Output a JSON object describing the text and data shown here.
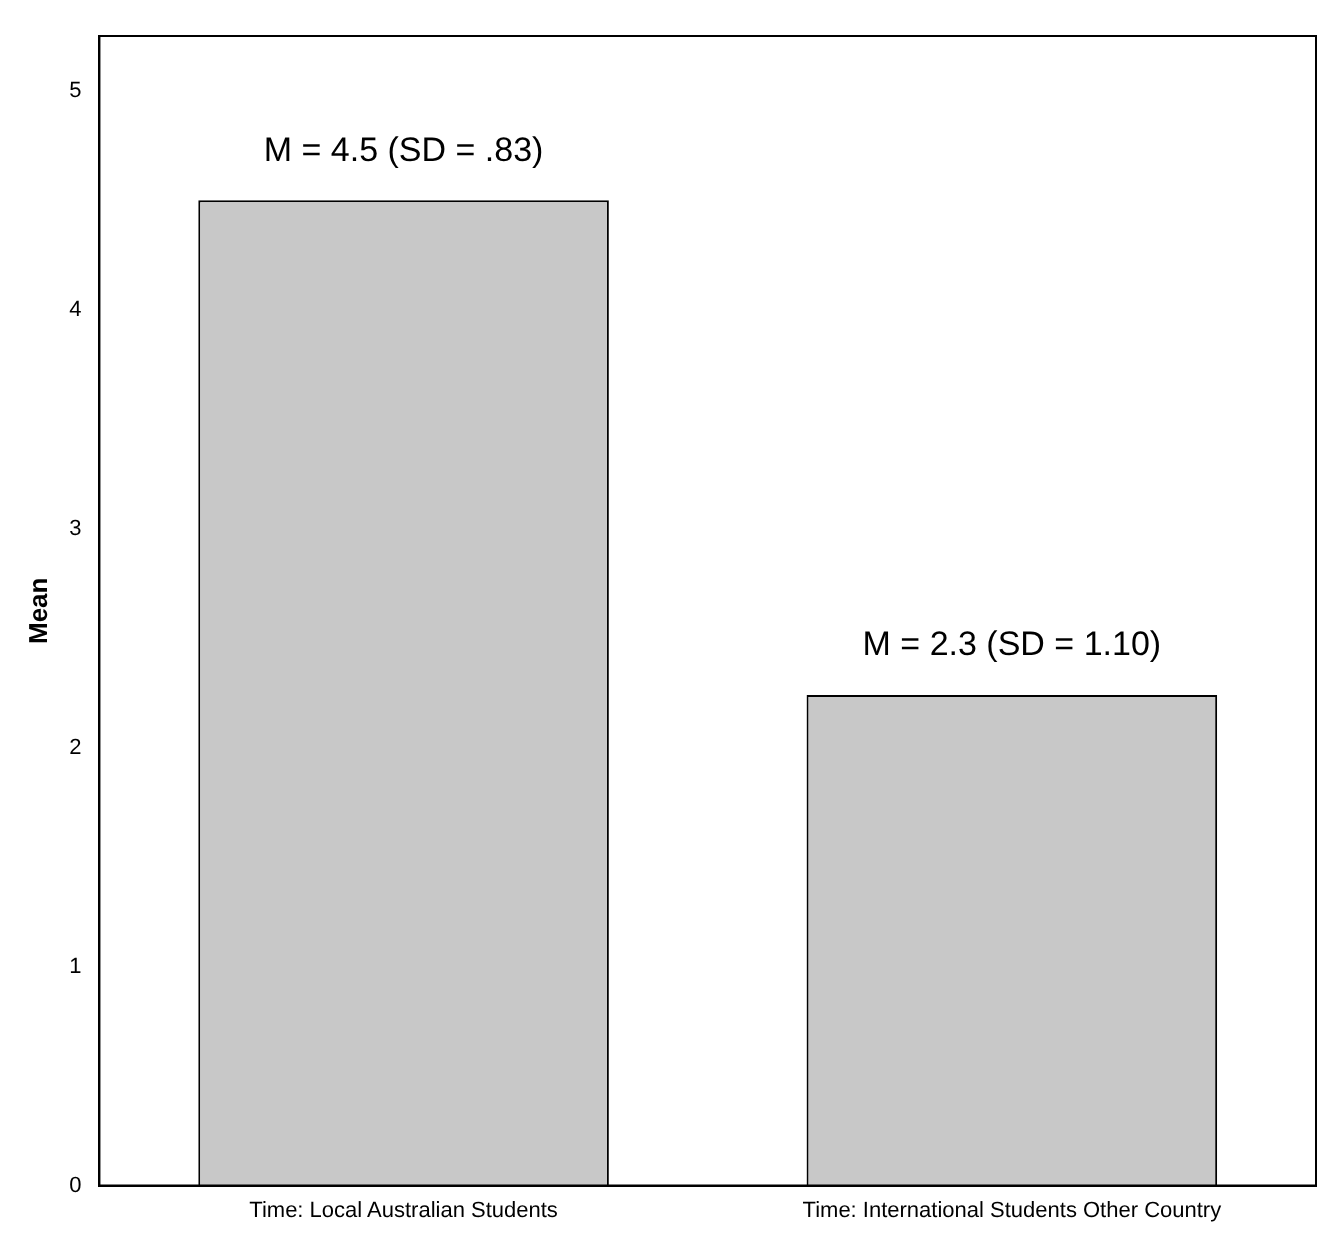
{
  "chart_data": {
    "type": "bar",
    "ylabel": "Mean",
    "categories": [
      "Time: Local Australian Students",
      "Time: International Students Other Country"
    ],
    "values": [
      4.5,
      2.24
    ],
    "color": "#c8c8c8",
    "ylim": [
      0,
      5.25
    ],
    "yticks": [
      0,
      1,
      2,
      3,
      4,
      5
    ],
    "grid": false,
    "legend": false,
    "annotations": [
      {
        "text": "M = 4.5 (SD = .83)",
        "x": "Time: Local Australian Students",
        "y": 4.5
      },
      {
        "text": "M = 2.3 (SD = 1.10)",
        "x": "Time: International Students Other Country",
        "y": 2.24
      }
    ]
  }
}
